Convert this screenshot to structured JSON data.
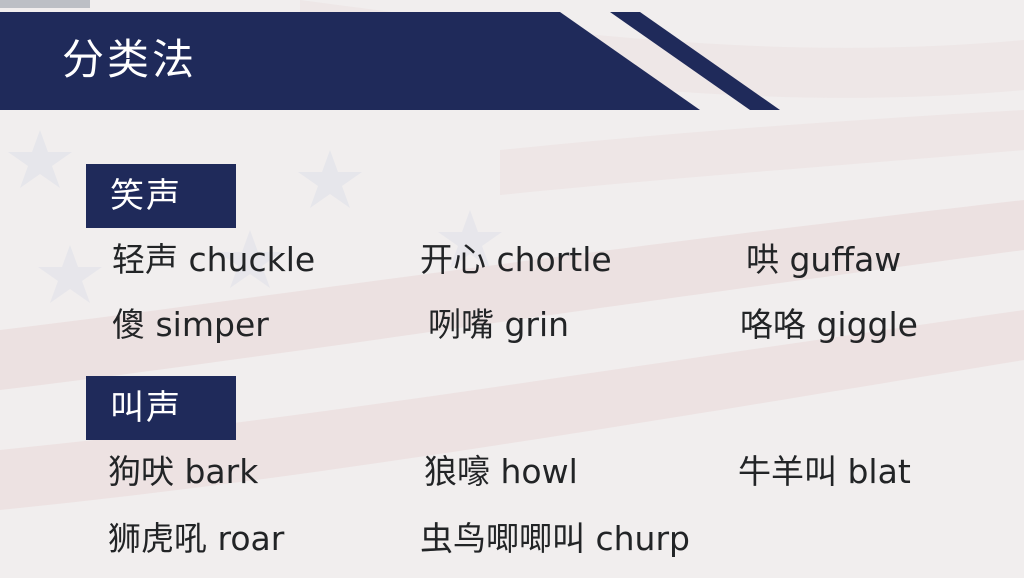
{
  "title": "分类法",
  "sections": [
    {
      "label": "笑声",
      "items": [
        {
          "text": "轻声 chuckle"
        },
        {
          "text": "开心 chortle"
        },
        {
          "text": "哄 guffaw"
        },
        {
          "text": "傻 simper"
        },
        {
          "text": "咧嘴 grin"
        },
        {
          "text": "咯咯 giggle"
        }
      ]
    },
    {
      "label": "叫声",
      "items": [
        {
          "text": "狗吠 bark"
        },
        {
          "text": "狼嚎 howl"
        },
        {
          "text": "牛羊叫 blat"
        },
        {
          "text": "狮虎吼 roar"
        },
        {
          "text": "虫鸟唧唧叫 churp"
        }
      ]
    }
  ],
  "colors": {
    "navy": "#1f2a5a",
    "background": "#f1eeee",
    "text": "#222426"
  }
}
